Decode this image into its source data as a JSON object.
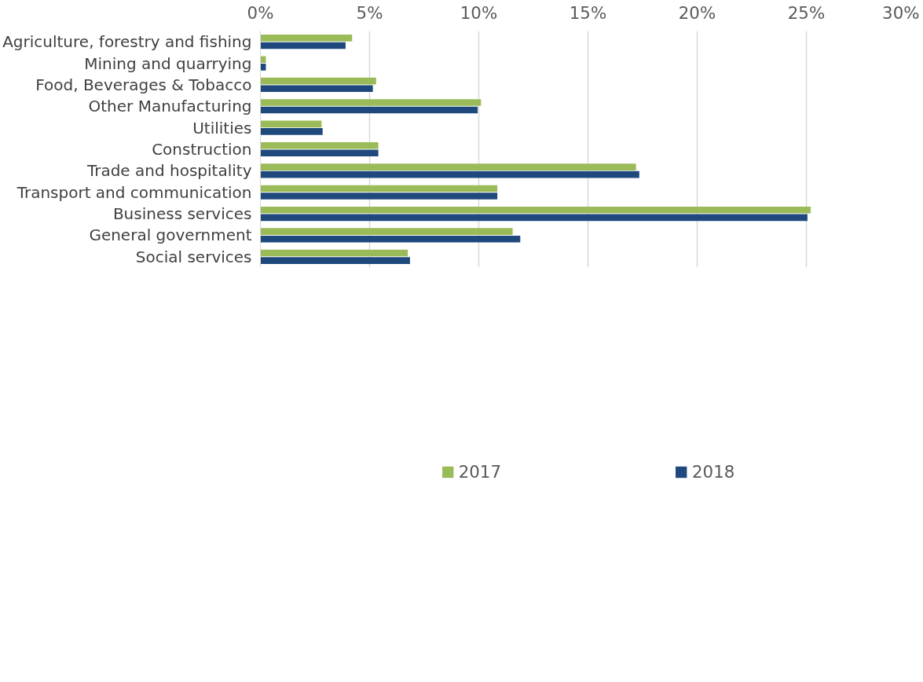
{
  "chart_data": {
    "type": "bar",
    "orientation": "horizontal",
    "categories": [
      "Agriculture, forestry and fishing",
      "Mining and quarrying",
      "Food, Beverages & Tobacco",
      "Other Manufacturing",
      "Utilities",
      "Construction",
      "Trade and hospitality",
      "Transport and communication",
      "Business services",
      "General government",
      "Social services"
    ],
    "series": [
      {
        "name": "2017",
        "color": "#9bbb59",
        "values": [
          4.2,
          0.25,
          5.3,
          10.1,
          2.8,
          5.4,
          17.2,
          10.85,
          25.2,
          11.55,
          6.75
        ]
      },
      {
        "name": "2018",
        "color": "#1f497d",
        "values": [
          3.9,
          0.25,
          5.15,
          9.95,
          2.85,
          5.4,
          17.35,
          10.85,
          25.05,
          11.9,
          6.85
        ]
      }
    ],
    "xlim": [
      0,
      30
    ],
    "xticks": [
      {
        "value": 0,
        "label": "0%"
      },
      {
        "value": 5,
        "label": "5%"
      },
      {
        "value": 10,
        "label": "10%"
      },
      {
        "value": 15,
        "label": "15%"
      },
      {
        "value": 20,
        "label": "20%"
      },
      {
        "value": 25,
        "label": "25%"
      },
      {
        "value": 30,
        "label": "30%"
      }
    ],
    "grid": "x",
    "legend": "bottom"
  }
}
